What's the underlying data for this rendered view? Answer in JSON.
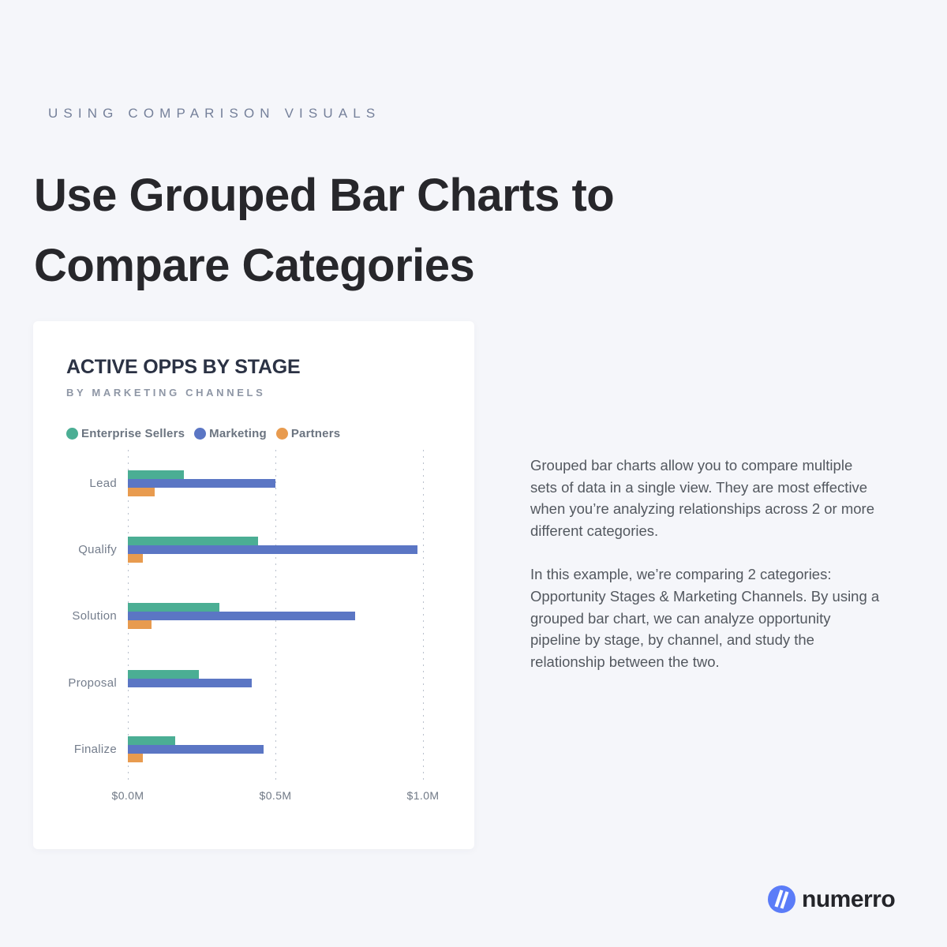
{
  "page": {
    "background": "#f5f6fa",
    "eyebrow": "USING COMPARISON VISUALS",
    "title_line1": "Use Grouped Bar Charts to",
    "title_line2": "Compare Categories"
  },
  "chart_data": {
    "type": "bar",
    "orientation": "horizontal",
    "title": "ACTIVE OPPS BY STAGE",
    "subtitle": "BY MARKETING CHANNELS",
    "categories": [
      "Lead",
      "Qualify",
      "Solution",
      "Proposal",
      "Finalize"
    ],
    "series": [
      {
        "name": "Enterprise Sellers",
        "color": "#4BAE94",
        "values": [
          0.19,
          0.44,
          0.31,
          0.24,
          0.16
        ]
      },
      {
        "name": "Marketing",
        "color": "#5B76C4",
        "values": [
          0.5,
          0.98,
          0.77,
          0.42,
          0.46
        ]
      },
      {
        "name": "Partners",
        "color": "#E89B4F",
        "values": [
          0.09,
          0.05,
          0.08,
          0.0,
          0.05
        ]
      }
    ],
    "x_ticks": [
      "$0.0M",
      "$0.5M",
      "$1.0M"
    ],
    "x_tick_values": [
      0,
      0.5,
      1.0
    ],
    "xlim": [
      0,
      1.05
    ],
    "unit": "$ millions",
    "legend_position": "top",
    "grid": "dotted-vertical"
  },
  "body": {
    "paragraph1": "Grouped bar charts allow you to compare multiple sets of data in a single view. They are most effective when you’re analyzing relationships across 2 or more different categories.",
    "paragraph2": "In this example, we’re comparing 2 categories: Opportunity Stages & Marketing Channels. By using a grouped bar chart, we can analyze opportunity pipeline by stage, by channel, and study the relationship between the two."
  },
  "footer": {
    "brand": "numerro",
    "logo_color": "#5b7cf8"
  }
}
